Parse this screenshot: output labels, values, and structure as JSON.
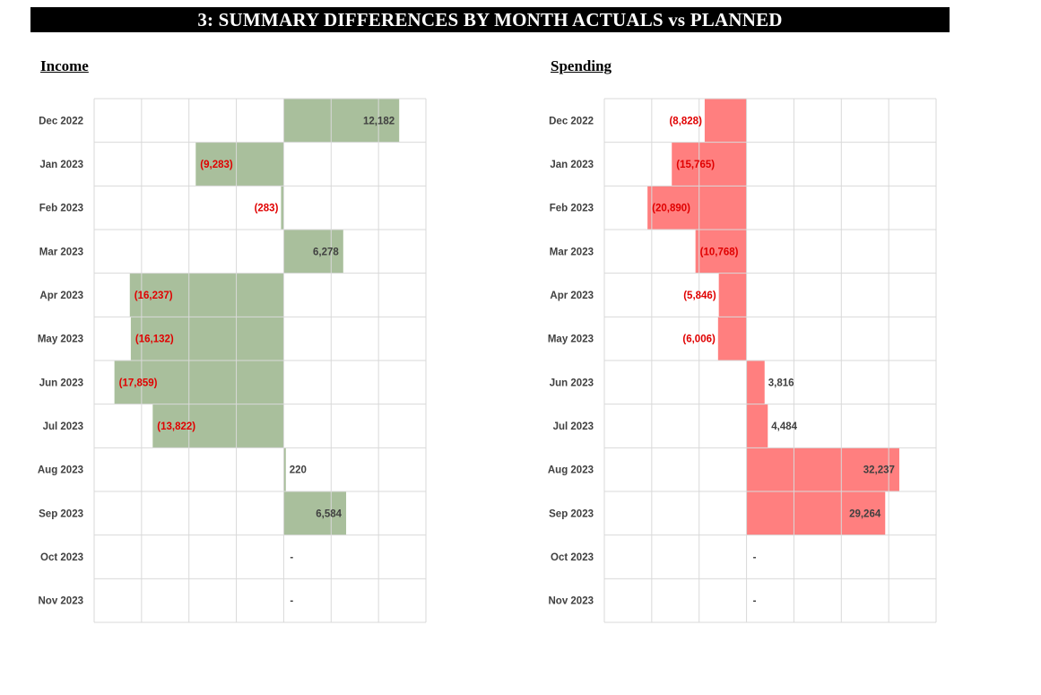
{
  "title": "3:  SUMMARY DIFFERENCES BY MONTH ACTUALS vs PLANNED",
  "colors": {
    "income_bar": "#a9bf9c",
    "spending_bar": "#ff7f7f",
    "negative_label": "#e00000",
    "positive_label": "#404040",
    "grid": "#d9d9d9",
    "category_label": "#404040"
  },
  "chart_data": [
    {
      "type": "bar",
      "orientation": "horizontal",
      "title": "Income",
      "categories": [
        "Dec 2022",
        "Jan 2023",
        "Feb 2023",
        "Mar 2023",
        "Apr 2023",
        "May 2023",
        "Jun 2023",
        "Jul 2023",
        "Aug 2023",
        "Sep 2023",
        "Oct 2023",
        "Nov 2023"
      ],
      "values": [
        12182,
        -9283,
        -283,
        6278,
        -16237,
        -16132,
        -17859,
        -13822,
        220,
        6584,
        0,
        0
      ],
      "value_labels": [
        "12,182",
        "(9,283)",
        "(283)",
        "6,278",
        "(16,237)",
        "(16,132)",
        "(17,859)",
        "(13,822)",
        "220",
        "6,584",
        "-",
        "-"
      ],
      "xlim": [
        -20000,
        15000
      ],
      "grid": true,
      "color": "#a9bf9c"
    },
    {
      "type": "bar",
      "orientation": "horizontal",
      "title": "Spending",
      "categories": [
        "Dec 2022",
        "Jan 2023",
        "Feb 2023",
        "Mar 2023",
        "Apr 2023",
        "May 2023",
        "Jun 2023",
        "Jul 2023",
        "Aug 2023",
        "Sep 2023",
        "Oct 2023",
        "Nov 2023"
      ],
      "values": [
        -8828,
        -15765,
        -20890,
        -10768,
        -5846,
        -6006,
        3816,
        4484,
        32237,
        29264,
        0,
        0
      ],
      "value_labels": [
        "(8,828)",
        "(15,765)",
        "(20,890)",
        "(10,768)",
        "(5,846)",
        "(6,006)",
        "3,816",
        "4,484",
        "32,237",
        "29,264",
        "-",
        "-"
      ],
      "xlim": [
        -30000,
        40000
      ],
      "grid": true,
      "color": "#ff7f7f"
    }
  ]
}
